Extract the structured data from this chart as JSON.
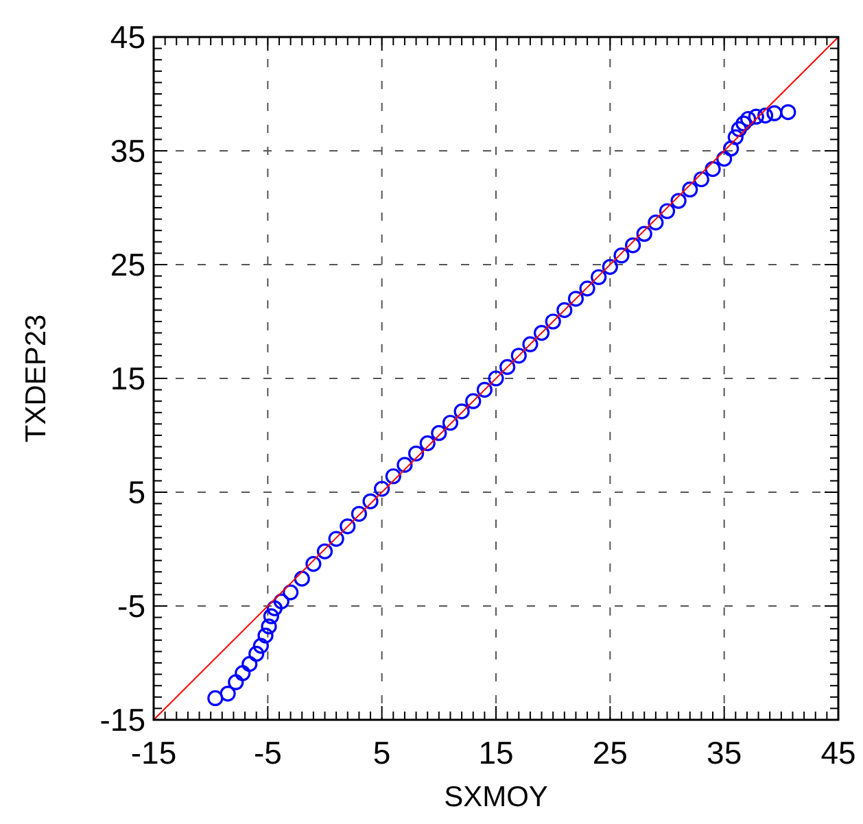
{
  "chart_data": {
    "type": "scatter",
    "xlabel": "SXMOY",
    "ylabel": "TXDEP23",
    "xlim": [
      -15,
      45
    ],
    "ylim": [
      -15,
      45
    ],
    "xticks": [
      -15,
      {
        "value": -14,
        "label": null
      },
      {
        "value": -13,
        "label": null
      },
      {
        "value": -12,
        "label": null
      },
      {
        "value": -11,
        "label": null
      },
      {
        "value": -10,
        "label": null
      },
      {
        "value": -9,
        "label": null
      },
      {
        "value": -8,
        "label": null
      },
      {
        "value": -7,
        "label": null
      },
      {
        "value": -6,
        "label": null
      },
      -5,
      {
        "value": -4,
        "label": null
      },
      {
        "value": -3,
        "label": null
      },
      {
        "value": -2,
        "label": null
      },
      {
        "value": -1,
        "label": null
      },
      {
        "value": 0,
        "label": null
      },
      {
        "value": 1,
        "label": null
      },
      {
        "value": 2,
        "label": null
      },
      {
        "value": 3,
        "label": null
      },
      {
        "value": 4,
        "label": null
      },
      5,
      {
        "value": 6,
        "label": null
      },
      {
        "value": 7,
        "label": null
      },
      {
        "value": 8,
        "label": null
      },
      {
        "value": 9,
        "label": null
      },
      {
        "value": 10,
        "label": null
      },
      {
        "value": 11,
        "label": null
      },
      {
        "value": 12,
        "label": null
      },
      {
        "value": 13,
        "label": null
      },
      {
        "value": 14,
        "label": null
      },
      15,
      {
        "value": 16,
        "label": null
      },
      {
        "value": 17,
        "label": null
      },
      {
        "value": 18,
        "label": null
      },
      {
        "value": 19,
        "label": null
      },
      {
        "value": 20,
        "label": null
      },
      {
        "value": 21,
        "label": null
      },
      {
        "value": 22,
        "label": null
      },
      {
        "value": 23,
        "label": null
      },
      {
        "value": 24,
        "label": null
      },
      25,
      {
        "value": 26,
        "label": null
      },
      {
        "value": 27,
        "label": null
      },
      {
        "value": 28,
        "label": null
      },
      {
        "value": 29,
        "label": null
      },
      {
        "value": 30,
        "label": null
      },
      {
        "value": 31,
        "label": null
      },
      {
        "value": 32,
        "label": null
      },
      {
        "value": 33,
        "label": null
      },
      {
        "value": 34,
        "label": null
      },
      35,
      {
        "value": 36,
        "label": null
      },
      {
        "value": 37,
        "label": null
      },
      {
        "value": 38,
        "label": null
      },
      {
        "value": 39,
        "label": null
      },
      {
        "value": 40,
        "label": null
      },
      {
        "value": 41,
        "label": null
      },
      {
        "value": 42,
        "label": null
      },
      {
        "value": 43,
        "label": null
      },
      {
        "value": 44,
        "label": null
      },
      45
    ],
    "yticks": [
      -15,
      {
        "value": -14,
        "label": null
      },
      {
        "value": -13,
        "label": null
      },
      {
        "value": -12,
        "label": null
      },
      {
        "value": -11,
        "label": null
      },
      {
        "value": -10,
        "label": null
      },
      {
        "value": -9,
        "label": null
      },
      {
        "value": -8,
        "label": null
      },
      {
        "value": -7,
        "label": null
      },
      {
        "value": -6,
        "label": null
      },
      -5,
      {
        "value": -4,
        "label": null
      },
      {
        "value": -3,
        "label": null
      },
      {
        "value": -2,
        "label": null
      },
      {
        "value": -1,
        "label": null
      },
      {
        "value": 0,
        "label": null
      },
      {
        "value": 1,
        "label": null
      },
      {
        "value": 2,
        "label": null
      },
      {
        "value": 3,
        "label": null
      },
      {
        "value": 4,
        "label": null
      },
      5,
      {
        "value": 6,
        "label": null
      },
      {
        "value": 7,
        "label": null
      },
      {
        "value": 8,
        "label": null
      },
      {
        "value": 9,
        "label": null
      },
      {
        "value": 10,
        "label": null
      },
      {
        "value": 11,
        "label": null
      },
      {
        "value": 12,
        "label": null
      },
      {
        "value": 13,
        "label": null
      },
      {
        "value": 14,
        "label": null
      },
      15,
      {
        "value": 16,
        "label": null
      },
      {
        "value": 17,
        "label": null
      },
      {
        "value": 18,
        "label": null
      },
      {
        "value": 19,
        "label": null
      },
      {
        "value": 20,
        "label": null
      },
      {
        "value": 21,
        "label": null
      },
      {
        "value": 22,
        "label": null
      },
      {
        "value": 23,
        "label": null
      },
      {
        "value": 24,
        "label": null
      },
      25,
      {
        "value": 26,
        "label": null
      },
      {
        "value": 27,
        "label": null
      },
      {
        "value": 28,
        "label": null
      },
      {
        "value": 29,
        "label": null
      },
      {
        "value": 30,
        "label": null
      },
      {
        "value": 31,
        "label": null
      },
      {
        "value": 32,
        "label": null
      },
      {
        "value": 33,
        "label": null
      },
      {
        "value": 34,
        "label": null
      },
      35,
      {
        "value": 36,
        "label": null
      },
      {
        "value": 37,
        "label": null
      },
      {
        "value": 38,
        "label": null
      },
      {
        "value": 39,
        "label": null
      },
      {
        "value": 40,
        "label": null
      },
      {
        "value": 41,
        "label": null
      },
      {
        "value": 42,
        "label": null
      },
      {
        "value": 43,
        "label": null
      },
      {
        "value": 44,
        "label": null
      },
      45
    ],
    "grid": true,
    "series": [
      {
        "marker": "circle",
        "color": "#0000ff",
        "x": [
          -9.6,
          -8.5,
          -7.8,
          -7.2,
          -6.6,
          -6.0,
          -5.6,
          -5.2,
          -4.9,
          -4.7,
          -4.4,
          -3.8,
          -3,
          -2,
          -1,
          0,
          1,
          2,
          3,
          4,
          5,
          6,
          7,
          8,
          9,
          10,
          11,
          12,
          13,
          14,
          15,
          16,
          17,
          18,
          19,
          20,
          21,
          22,
          23,
          24,
          25,
          26,
          27,
          28,
          29,
          30,
          31,
          32,
          33,
          34,
          35,
          35.6,
          36.0,
          36.3,
          36.7,
          37.1,
          37.8,
          38.6,
          39.4,
          40.6
        ],
        "values": [
          -13.1,
          -12.7,
          -11.7,
          -10.9,
          -10.1,
          -9.2,
          -8.5,
          -7.6,
          -6.8,
          -5.9,
          -5.2,
          -4.6,
          -3.8,
          -2.6,
          -1.3,
          -0.2,
          0.9,
          2.0,
          3.1,
          4.2,
          5.3,
          6.4,
          7.4,
          8.4,
          9.3,
          10.2,
          11.1,
          12.1,
          13.0,
          14.0,
          15.0,
          16.0,
          17.0,
          18.0,
          19.0,
          20.0,
          21.0,
          22.0,
          22.9,
          23.9,
          24.8,
          25.8,
          26.7,
          27.7,
          28.7,
          29.7,
          30.6,
          31.6,
          32.5,
          33.4,
          34.3,
          35.2,
          36.2,
          36.9,
          37.4,
          37.8,
          38.0,
          38.1,
          38.3,
          38.4
        ]
      },
      {
        "type": "line",
        "marker": "none",
        "color": "#ff0000",
        "x": [
          -15,
          45
        ],
        "values": [
          -15,
          45
        ]
      }
    ]
  }
}
